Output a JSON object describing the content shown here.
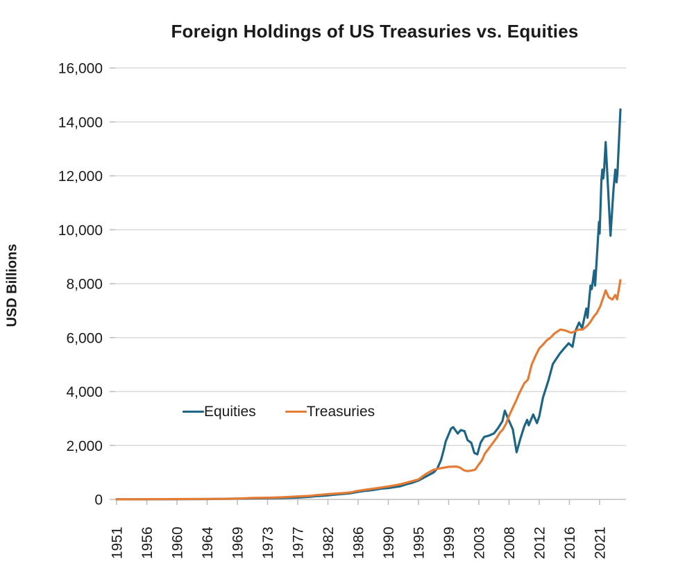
{
  "title": "Foreign Holdings of US Treasuries vs. Equities",
  "chart_data": {
    "type": "line",
    "title": "Foreign Holdings of US Treasuries vs. Equities",
    "xlabel": "",
    "ylabel": "USD Billions",
    "ylim": [
      0,
      16000
    ],
    "grid": "horizontal",
    "legend_position": "inside lower-left of plot",
    "y_ticks": [
      {
        "value": 0,
        "label": "0"
      },
      {
        "value": 2000,
        "label": "2,000"
      },
      {
        "value": 4000,
        "label": "4,000"
      },
      {
        "value": 6000,
        "label": "6,000"
      },
      {
        "value": 8000,
        "label": "8,000"
      },
      {
        "value": 10000,
        "label": "10,000"
      },
      {
        "value": 12000,
        "label": "12,000"
      },
      {
        "value": 14000,
        "label": "14,000"
      },
      {
        "value": 16000,
        "label": "16,000"
      }
    ],
    "x_tick_years": [
      1951,
      1956,
      1960,
      1964,
      1969,
      1973,
      1977,
      1982,
      1986,
      1990,
      1995,
      1999,
      2003,
      2008,
      2012,
      2016,
      2021
    ],
    "x_end_year": 2024.5,
    "colors": {
      "equities": "#1E6484",
      "treasuries": "#E47C35",
      "grid": "#D9D9D9",
      "axis": "#BFBFBF",
      "text": "#1A1A1A",
      "background": "#FFFFFF"
    },
    "series": [
      {
        "name": "Equities",
        "color": "#1E6484",
        "points": [
          [
            1951,
            2
          ],
          [
            1956,
            5
          ],
          [
            1960,
            8
          ],
          [
            1964,
            14
          ],
          [
            1969,
            28
          ],
          [
            1971,
            38
          ],
          [
            1973,
            45
          ],
          [
            1975,
            55
          ],
          [
            1977,
            70
          ],
          [
            1979,
            95
          ],
          [
            1980,
            120
          ],
          [
            1981,
            130
          ],
          [
            1982,
            150
          ],
          [
            1983,
            180
          ],
          [
            1984,
            200
          ],
          [
            1985,
            230
          ],
          [
            1986,
            280
          ],
          [
            1987,
            320
          ],
          [
            1988,
            350
          ],
          [
            1989,
            400
          ],
          [
            1990,
            420
          ],
          [
            1991,
            455
          ],
          [
            1992,
            490
          ],
          [
            1993,
            560
          ],
          [
            1994,
            620
          ],
          [
            1995,
            700
          ],
          [
            1996,
            850
          ],
          [
            1997,
            1000
          ],
          [
            1997.5,
            1150
          ],
          [
            1998,
            1470
          ],
          [
            1998.4,
            1900
          ],
          [
            1998.6,
            2140
          ],
          [
            1999.3,
            2620
          ],
          [
            1999.6,
            2680
          ],
          [
            2000.2,
            2440
          ],
          [
            2000.6,
            2570
          ],
          [
            2001.1,
            2530
          ],
          [
            2001.5,
            2200
          ],
          [
            2002,
            2100
          ],
          [
            2002.4,
            1720
          ],
          [
            2002.8,
            1670
          ],
          [
            2003.3,
            2110
          ],
          [
            2003.9,
            2320
          ],
          [
            2004.7,
            2370
          ],
          [
            2005.5,
            2450
          ],
          [
            2006.2,
            2650
          ],
          [
            2006.9,
            2900
          ],
          [
            2007.3,
            3290
          ],
          [
            2008,
            2910
          ],
          [
            2008.5,
            2600
          ],
          [
            2009,
            1750
          ],
          [
            2009.5,
            2250
          ],
          [
            2010,
            2700
          ],
          [
            2010.4,
            2950
          ],
          [
            2010.6,
            2750
          ],
          [
            2011.2,
            3150
          ],
          [
            2011.7,
            2830
          ],
          [
            2012,
            3080
          ],
          [
            2012.5,
            3780
          ],
          [
            2013.2,
            4400
          ],
          [
            2013.8,
            5020
          ],
          [
            2014.7,
            5400
          ],
          [
            2015.3,
            5600
          ],
          [
            2015.9,
            5790
          ],
          [
            2016.5,
            5660
          ],
          [
            2017,
            6250
          ],
          [
            2017.6,
            6560
          ],
          [
            2018.1,
            6350
          ],
          [
            2018.8,
            7080
          ],
          [
            2019,
            6740
          ],
          [
            2019.5,
            7930
          ],
          [
            2019.7,
            7800
          ],
          [
            2020.1,
            8490
          ],
          [
            2020.25,
            7930
          ],
          [
            2020.5,
            8800
          ],
          [
            2020.9,
            10290
          ],
          [
            2021,
            9860
          ],
          [
            2021.3,
            11840
          ],
          [
            2021.45,
            12230
          ],
          [
            2021.6,
            11900
          ],
          [
            2021.75,
            12230
          ],
          [
            2022,
            13250
          ],
          [
            2022.8,
            9780
          ],
          [
            2023.3,
            11500
          ],
          [
            2023.6,
            12230
          ],
          [
            2023.8,
            11760
          ],
          [
            2023.95,
            12100
          ],
          [
            2024.45,
            14460
          ]
        ]
      },
      {
        "name": "Treasuries",
        "color": "#E47C35",
        "points": [
          [
            1951,
            3
          ],
          [
            1956,
            7
          ],
          [
            1960,
            12
          ],
          [
            1964,
            18
          ],
          [
            1968,
            24
          ],
          [
            1970,
            45
          ],
          [
            1971,
            55
          ],
          [
            1973,
            62
          ],
          [
            1975,
            80
          ],
          [
            1977,
            110
          ],
          [
            1979,
            130
          ],
          [
            1980,
            160
          ],
          [
            1981,
            175
          ],
          [
            1982,
            195
          ],
          [
            1983,
            215
          ],
          [
            1984,
            235
          ],
          [
            1985,
            260
          ],
          [
            1986,
            320
          ],
          [
            1987,
            360
          ],
          [
            1988,
            400
          ],
          [
            1989,
            440
          ],
          [
            1990,
            480
          ],
          [
            1991,
            520
          ],
          [
            1992,
            560
          ],
          [
            1993,
            620
          ],
          [
            1994,
            680
          ],
          [
            1995,
            740
          ],
          [
            1996,
            950
          ],
          [
            1997,
            1100
          ],
          [
            1998,
            1160
          ],
          [
            1999,
            1210
          ],
          [
            2000,
            1220
          ],
          [
            2000.5,
            1180
          ],
          [
            2001,
            1080
          ],
          [
            2001.5,
            1050
          ],
          [
            2002,
            1070
          ],
          [
            2002.5,
            1100
          ],
          [
            2003,
            1300
          ],
          [
            2003.5,
            1450
          ],
          [
            2004,
            1700
          ],
          [
            2004.5,
            1850
          ],
          [
            2005,
            2000
          ],
          [
            2005.5,
            2150
          ],
          [
            2006,
            2300
          ],
          [
            2006.5,
            2480
          ],
          [
            2007,
            2600
          ],
          [
            2007.5,
            2800
          ],
          [
            2008,
            3100
          ],
          [
            2008.5,
            3400
          ],
          [
            2009,
            3700
          ],
          [
            2009.3,
            3900
          ],
          [
            2010,
            4300
          ],
          [
            2010.5,
            4440
          ],
          [
            2011,
            5000
          ],
          [
            2011.5,
            5320
          ],
          [
            2012,
            5600
          ],
          [
            2012.5,
            5740
          ],
          [
            2013,
            5900
          ],
          [
            2013.5,
            6000
          ],
          [
            2014,
            6150
          ],
          [
            2014.8,
            6300
          ],
          [
            2015.5,
            6260
          ],
          [
            2016.3,
            6180
          ],
          [
            2016.9,
            6230
          ],
          [
            2017.5,
            6300
          ],
          [
            2018.2,
            6300
          ],
          [
            2019,
            6450
          ],
          [
            2019.4,
            6560
          ],
          [
            2020.1,
            6800
          ],
          [
            2020.5,
            6900
          ],
          [
            2021.1,
            7160
          ],
          [
            2022,
            7750
          ],
          [
            2022.5,
            7500
          ],
          [
            2023.1,
            7410
          ],
          [
            2023.6,
            7580
          ],
          [
            2023.9,
            7420
          ],
          [
            2024.45,
            8130
          ]
        ]
      }
    ]
  }
}
